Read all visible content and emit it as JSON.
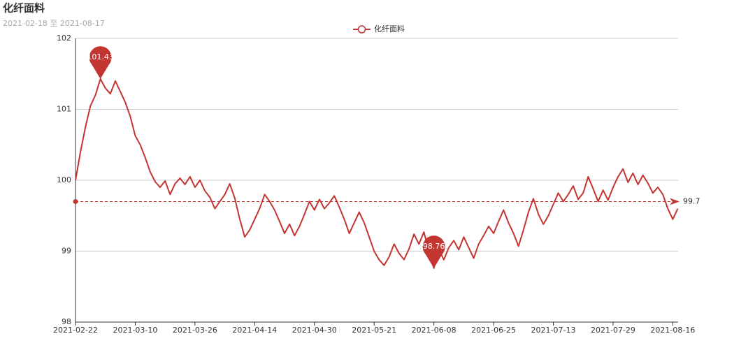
{
  "chart_data": {
    "type": "line",
    "title": "化纤面料",
    "subtitle": "2021-02-18 至 2021-08-17",
    "categories": [
      "2021-02-22",
      null,
      null,
      null,
      null,
      null,
      null,
      null,
      null,
      null,
      null,
      null,
      "2021-03-10",
      null,
      null,
      null,
      null,
      null,
      null,
      null,
      null,
      null,
      null,
      null,
      "2021-03-26",
      null,
      null,
      null,
      null,
      null,
      null,
      null,
      null,
      null,
      null,
      null,
      "2021-04-14",
      null,
      null,
      null,
      null,
      null,
      null,
      null,
      null,
      null,
      null,
      null,
      "2021-04-30",
      null,
      null,
      null,
      null,
      null,
      null,
      null,
      null,
      null,
      null,
      null,
      "2021-05-21",
      null,
      null,
      null,
      null,
      null,
      null,
      null,
      null,
      null,
      null,
      null,
      "2021-06-08",
      null,
      null,
      null,
      null,
      null,
      null,
      null,
      null,
      null,
      null,
      null,
      "2021-06-25",
      null,
      null,
      null,
      null,
      null,
      null,
      null,
      null,
      null,
      null,
      null,
      "2021-07-13",
      null,
      null,
      null,
      null,
      null,
      null,
      null,
      null,
      null,
      null,
      null,
      "2021-07-29",
      null,
      null,
      null,
      null,
      null,
      null,
      null,
      null,
      null,
      null,
      null,
      "2021-08-16",
      null
    ],
    "series": [
      {
        "name": "化纤面料",
        "color": "#c23531",
        "values": [
          100.0,
          100.4,
          100.75,
          101.05,
          101.2,
          101.43,
          101.3,
          101.22,
          101.4,
          101.25,
          101.1,
          100.9,
          100.63,
          100.5,
          100.32,
          100.12,
          99.98,
          99.9,
          99.99,
          99.8,
          99.95,
          100.03,
          99.94,
          100.05,
          99.9,
          100.0,
          99.85,
          99.76,
          99.6,
          99.7,
          99.8,
          99.95,
          99.75,
          99.45,
          99.2,
          99.3,
          99.45,
          99.6,
          99.8,
          99.7,
          99.58,
          99.42,
          99.25,
          99.38,
          99.22,
          99.35,
          99.52,
          99.7,
          99.58,
          99.73,
          99.6,
          99.68,
          99.78,
          99.62,
          99.45,
          99.25,
          99.4,
          99.55,
          99.4,
          99.2,
          99.0,
          98.88,
          98.8,
          98.92,
          99.1,
          98.97,
          98.88,
          99.03,
          99.24,
          99.1,
          99.27,
          99.0,
          98.76,
          99.02,
          98.88,
          99.05,
          99.15,
          99.02,
          99.2,
          99.05,
          98.9,
          99.1,
          99.22,
          99.35,
          99.25,
          99.42,
          99.58,
          99.4,
          99.25,
          99.07,
          99.3,
          99.55,
          99.74,
          99.52,
          99.38,
          99.5,
          99.66,
          99.82,
          99.7,
          99.8,
          99.92,
          99.73,
          99.82,
          100.05,
          99.88,
          99.7,
          99.86,
          99.72,
          99.9,
          100.05,
          100.16,
          99.97,
          100.1,
          99.94,
          100.07,
          99.96,
          99.82,
          99.9,
          99.8,
          99.6,
          99.45,
          99.6
        ]
      }
    ],
    "max_value": 101.43,
    "min_value": 98.76,
    "average": 99.7,
    "ylim": [
      98,
      102
    ],
    "yticks": [
      98,
      99,
      100,
      101,
      102
    ],
    "grid": true
  }
}
